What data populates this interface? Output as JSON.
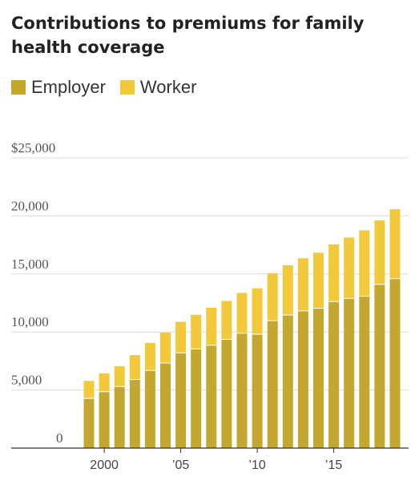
{
  "chart_data": {
    "type": "bar",
    "stacked": true,
    "title": "Contributions to premiums for family health coverage",
    "x": [
      1999,
      2000,
      2001,
      2002,
      2003,
      2004,
      2005,
      2006,
      2007,
      2008,
      2009,
      2010,
      2011,
      2012,
      2013,
      2014,
      2015,
      2016,
      2017,
      2018,
      2019
    ],
    "series": [
      {
        "name": "Employer",
        "color": "#c4a72f",
        "values": [
          4247,
          4819,
          5269,
          5866,
          6657,
          7289,
          8167,
          8508,
          8824,
          9325,
          9860,
          9773,
          10944,
          11429,
          11786,
          12011,
          12591,
          12865,
          13049,
          14069,
          14561
        ]
      },
      {
        "name": "Worker",
        "color": "#f1c93a",
        "values": [
          1543,
          1619,
          1787,
          2137,
          2412,
          2661,
          2713,
          2973,
          3281,
          3354,
          3515,
          3997,
          4129,
          4316,
          4565,
          4823,
          4955,
          5277,
          5714,
          5547,
          6015
        ]
      }
    ],
    "y_ticks": [
      {
        "value": 0,
        "label": "0"
      },
      {
        "value": 5000,
        "label": "5,000"
      },
      {
        "value": 10000,
        "label": "10,000"
      },
      {
        "value": 15000,
        "label": "15,000"
      },
      {
        "value": 20000,
        "label": "20,000"
      },
      {
        "value": 25000,
        "label": "$25,000"
      }
    ],
    "x_ticks": [
      {
        "value": 2000,
        "label": "2000"
      },
      {
        "value": 2005,
        "label": "’05"
      },
      {
        "value": 2010,
        "label": "’10"
      },
      {
        "value": 2015,
        "label": "’15"
      }
    ],
    "ylim": [
      0,
      25000
    ],
    "grid": true,
    "legend": "top-left"
  }
}
